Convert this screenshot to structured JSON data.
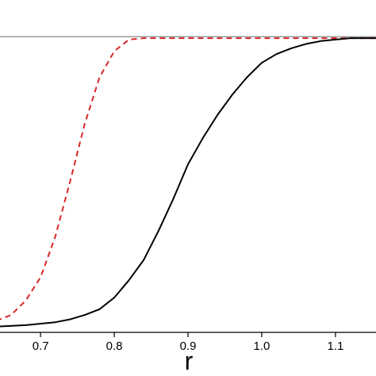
{
  "chart_data": {
    "type": "line",
    "title": "",
    "xlabel": "r",
    "ylabel": "",
    "xlim": [
      0.645,
      1.155
    ],
    "ylim": [
      -0.02,
      1.05
    ],
    "xticks": [
      0.7,
      0.8,
      0.9,
      1.0,
      1.1
    ],
    "xtick_labels": [
      "0.7",
      "0.8",
      "0.9",
      "1.0",
      "1.1"
    ],
    "reference_line_y": 1.0,
    "grid": false,
    "series": [
      {
        "style": "dashed",
        "color": "#d62728",
        "x": [
          0.64,
          0.66,
          0.68,
          0.7,
          0.72,
          0.74,
          0.76,
          0.78,
          0.8,
          0.82,
          0.84,
          0.86,
          0.9,
          1.0,
          1.1,
          1.16
        ],
        "y": [
          0.02,
          0.04,
          0.09,
          0.17,
          0.31,
          0.5,
          0.7,
          0.86,
          0.95,
          0.99,
          0.995,
          0.995,
          0.995,
          0.995,
          0.995,
          0.995
        ]
      },
      {
        "style": "solid",
        "color": "#000000",
        "x": [
          0.64,
          0.68,
          0.72,
          0.74,
          0.76,
          0.78,
          0.8,
          0.82,
          0.84,
          0.86,
          0.88,
          0.9,
          0.92,
          0.94,
          0.96,
          0.98,
          1.0,
          1.02,
          1.04,
          1.06,
          1.08,
          1.1,
          1.12,
          1.14,
          1.16
        ],
        "y": [
          0.0,
          0.005,
          0.015,
          0.025,
          0.04,
          0.06,
          0.1,
          0.16,
          0.23,
          0.33,
          0.44,
          0.56,
          0.65,
          0.73,
          0.8,
          0.86,
          0.91,
          0.94,
          0.96,
          0.975,
          0.985,
          0.99,
          0.995,
          0.995,
          0.995
        ]
      }
    ]
  }
}
